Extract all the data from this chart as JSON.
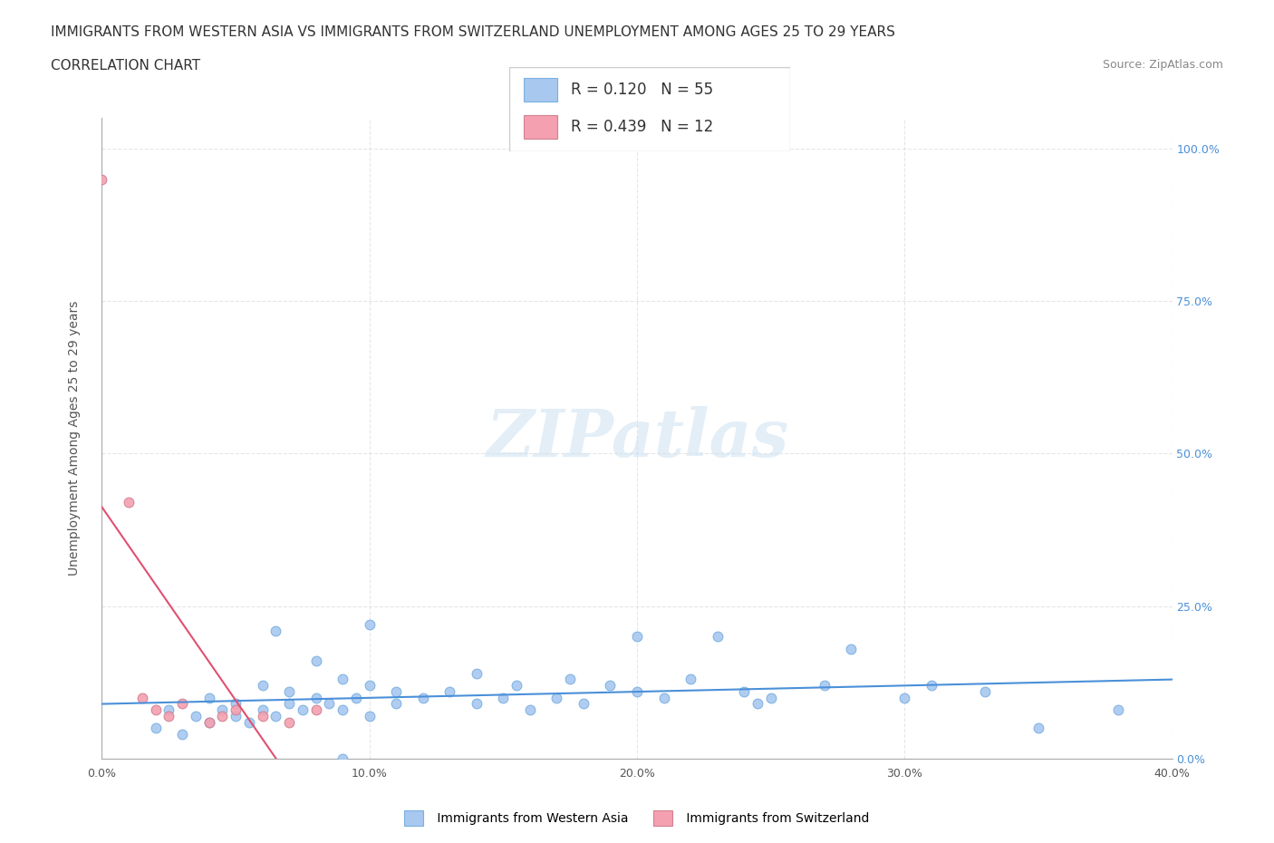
{
  "title_line1": "IMMIGRANTS FROM WESTERN ASIA VS IMMIGRANTS FROM SWITZERLAND UNEMPLOYMENT AMONG AGES 25 TO 29 YEARS",
  "title_line2": "CORRELATION CHART",
  "source_text": "Source: ZipAtlas.com",
  "xlabel_bottom": "",
  "ylabel": "Unemployment Among Ages 25 to 29 years",
  "watermark": "ZIPatlas",
  "r_western_asia": 0.12,
  "n_western_asia": 55,
  "r_switzerland": 0.439,
  "n_switzerland": 12,
  "color_western_asia": "#a8c8f0",
  "color_switzerland": "#f4a0b0",
  "color_line_western_asia": "#4a90d9",
  "color_line_switzerland": "#e05070",
  "xlim": [
    0.0,
    0.4
  ],
  "ylim": [
    0.0,
    1.05
  ],
  "xticks": [
    0.0,
    0.1,
    0.2,
    0.3,
    0.4
  ],
  "xtick_labels": [
    "0.0%",
    "10.0%",
    "20.0%",
    "30.0%",
    "40.0%"
  ],
  "ytick_labels_right": [
    "0.0%",
    "25.0%",
    "50.0%",
    "75.0%",
    "100.0%"
  ],
  "ytick_positions": [
    0.0,
    0.25,
    0.5,
    0.75,
    1.0
  ],
  "western_asia_x": [
    0.02,
    0.025,
    0.03,
    0.035,
    0.04,
    0.04,
    0.045,
    0.05,
    0.05,
    0.055,
    0.06,
    0.06,
    0.065,
    0.07,
    0.07,
    0.075,
    0.08,
    0.085,
    0.09,
    0.09,
    0.095,
    0.1,
    0.1,
    0.11,
    0.11,
    0.12,
    0.13,
    0.14,
    0.14,
    0.15,
    0.155,
    0.16,
    0.17,
    0.175,
    0.18,
    0.19,
    0.2,
    0.21,
    0.22,
    0.23,
    0.24,
    0.245,
    0.25,
    0.27,
    0.28,
    0.3,
    0.31,
    0.33,
    0.35,
    0.38,
    0.065,
    0.08,
    0.09,
    0.1,
    0.2
  ],
  "western_asia_y": [
    0.05,
    0.08,
    0.04,
    0.07,
    0.06,
    0.1,
    0.08,
    0.07,
    0.09,
    0.06,
    0.08,
    0.12,
    0.07,
    0.09,
    0.11,
    0.08,
    0.1,
    0.09,
    0.08,
    0.13,
    0.1,
    0.12,
    0.07,
    0.11,
    0.09,
    0.1,
    0.11,
    0.09,
    0.14,
    0.1,
    0.12,
    0.08,
    0.1,
    0.13,
    0.09,
    0.12,
    0.11,
    0.1,
    0.13,
    0.2,
    0.11,
    0.09,
    0.1,
    0.12,
    0.18,
    0.1,
    0.12,
    0.11,
    0.05,
    0.08,
    0.21,
    0.16,
    0.0,
    0.22,
    0.2
  ],
  "switzerland_x": [
    0.0,
    0.01,
    0.015,
    0.02,
    0.025,
    0.03,
    0.04,
    0.045,
    0.05,
    0.06,
    0.07,
    0.08
  ],
  "switzerland_y": [
    0.95,
    0.42,
    0.1,
    0.08,
    0.07,
    0.09,
    0.06,
    0.07,
    0.08,
    0.07,
    0.06,
    0.08
  ],
  "title_fontsize": 11,
  "subtitle_fontsize": 11,
  "axis_label_fontsize": 10,
  "tick_fontsize": 9,
  "legend_fontsize": 11,
  "source_fontsize": 9
}
